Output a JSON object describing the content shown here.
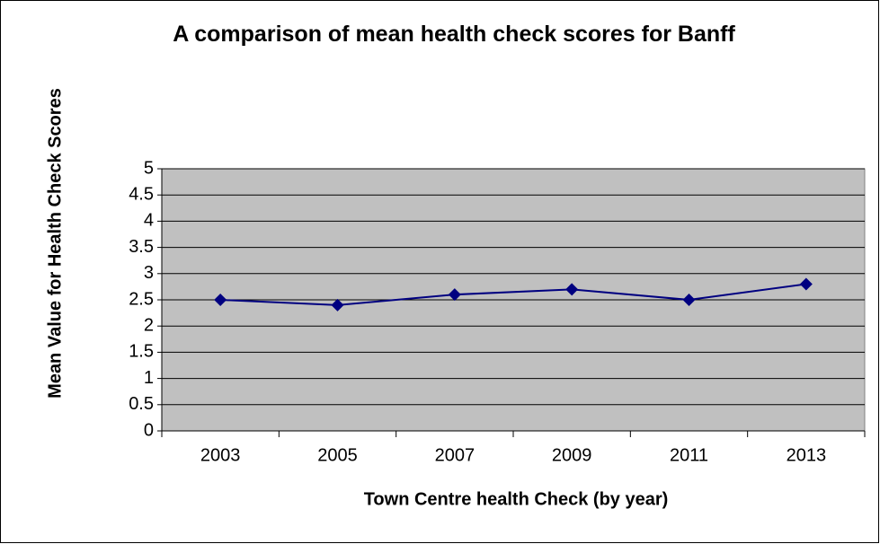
{
  "chart_data": {
    "type": "line",
    "title": "A comparison of mean health check scores for Banff",
    "x_label": "Town Centre health Check (by year)",
    "y_label": "Mean Value for Health Check Scores",
    "categories": [
      "2003",
      "2005",
      "2007",
      "2009",
      "2011",
      "2013"
    ],
    "series": [
      {
        "name": "Banff",
        "color": "#000080",
        "values": [
          2.5,
          2.4,
          2.6,
          2.7,
          2.5,
          2.8
        ]
      }
    ],
    "ylim": [
      0,
      5
    ],
    "yticks": [
      0,
      0.5,
      1,
      1.5,
      2,
      2.5,
      3,
      3.5,
      4,
      4.5,
      5
    ],
    "grid": true,
    "legend": false
  }
}
